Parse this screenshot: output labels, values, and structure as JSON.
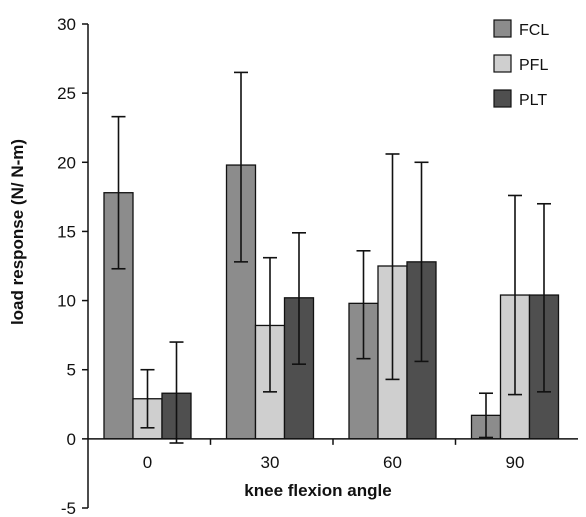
{
  "chart_data": {
    "type": "bar",
    "xlabel": "knee flexion angle",
    "ylabel": "load response (N/ N-m)",
    "categories": [
      "0",
      "30",
      "60",
      "90"
    ],
    "ylim": [
      -5,
      30
    ],
    "yticks": [
      -5,
      0,
      5,
      10,
      15,
      20,
      25,
      30
    ],
    "legend_position": "top-right",
    "error_bars": true,
    "series": [
      {
        "name": "FCL",
        "color": "#8c8c8c",
        "values": [
          17.8,
          19.8,
          9.8,
          1.7
        ],
        "error_low": [
          12.3,
          12.8,
          5.8,
          0.1
        ],
        "error_high": [
          23.3,
          26.5,
          13.6,
          3.3
        ]
      },
      {
        "name": "PFL",
        "color": "#cfcfcf",
        "values": [
          2.9,
          8.2,
          12.5,
          10.4
        ],
        "error_low": [
          0.8,
          3.4,
          4.3,
          3.2
        ],
        "error_high": [
          5.0,
          13.1,
          20.6,
          17.6
        ]
      },
      {
        "name": "PLT",
        "color": "#4f4f4f",
        "values": [
          3.3,
          10.2,
          12.8,
          10.4
        ],
        "error_low": [
          -0.3,
          5.4,
          5.6,
          3.4
        ],
        "error_high": [
          7.0,
          14.9,
          20.0,
          17.0
        ]
      }
    ]
  }
}
